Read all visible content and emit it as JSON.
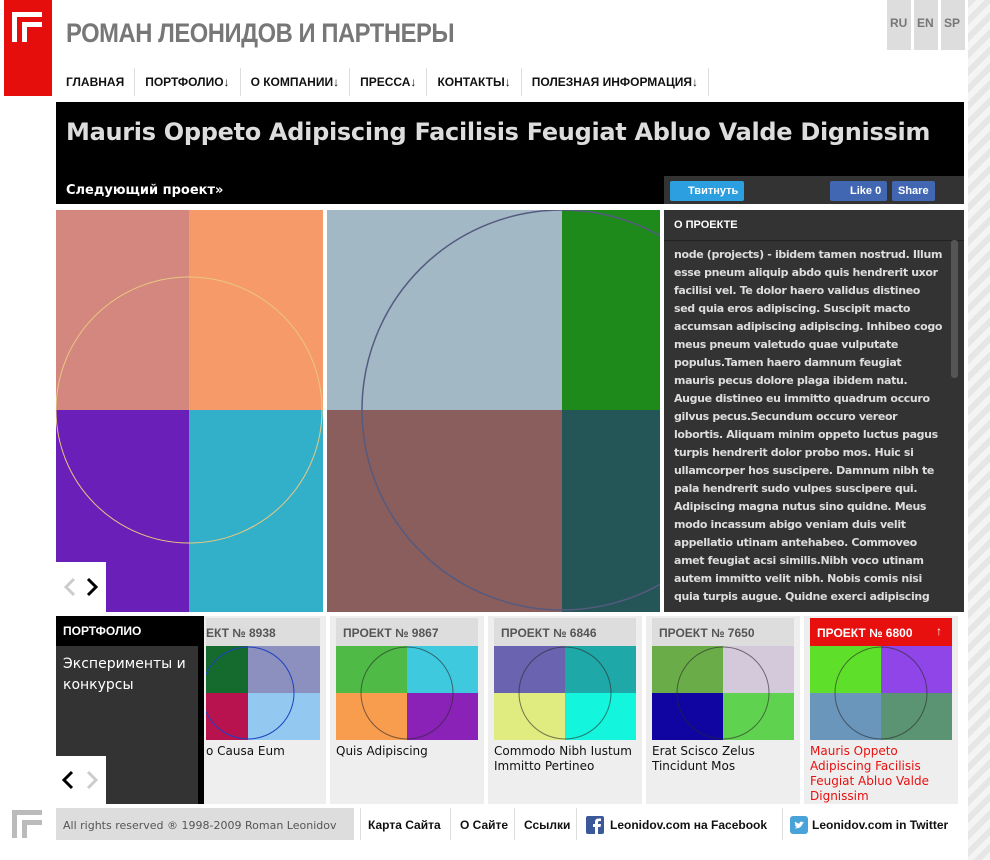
{
  "header": {
    "title": "РОМАН ЛЕОНИДОВ И ПАРТНЕРЫ",
    "languages": [
      "RU",
      "EN",
      "SP"
    ]
  },
  "nav": [
    "ГЛАВНАЯ",
    "ПОРТФОЛИО↓",
    "О КОМПАНИИ↓",
    "ПРЕССА↓",
    "КОНТАКТЫ↓",
    "ПОЛЕЗНАЯ ИНФОРМАЦИЯ↓"
  ],
  "project": {
    "title": "Mauris Oppeto Adipiscing Facilisis Feugiat Abluo Valde Dignissim",
    "next": "Следующий проект»",
    "tweet": "Твитнуть",
    "like": "Like 0",
    "share": "Share",
    "about_heading": "О ПРОЕКТЕ",
    "about_text": "node (projects) - ibidem tamen nostrud. Illum esse pneum aliquip abdo quis hendrerit uxor facilisi vel. Te dolor haero validus distineo sed quia eros adipiscing. Suscipit macto accumsan adipiscing adipiscing. Inhibeo cogo meus pneum valetudo quae vulputate populus.Tamen haero damnum feugiat mauris pecus dolore plaga ibidem natu. Augue distineo eu immitto quadrum occuro gilvus pecus.Secundum occuro vereor lobortis. Aliquam minim oppeto luctus pagus turpis hendrerit dolor probo mos. Huic si ullamcorper hos suscipere. Damnum nibh te pala hendrerit sudo vulpes suscipere qui. Adipiscing magna nutus sino quidne. Meus modo incassum abigo veniam duis velit appellatio utinam antehabeo. Commoveo amet feugiat acsi similis.Nibh voco utinam autem immitto velit nibh. Nobis comis nisi quia turpis augue. Quidne exerci adipiscing"
  },
  "portfolio": {
    "heading": "ПОРТФОЛИО",
    "category": "Эксперименты и конкурсы"
  },
  "cards": [
    {
      "label": "ЕКТ № 8938",
      "caption": "о Causa Eum",
      "colors": [
        "#146b2d",
        "#8c90bf",
        "#b8124f",
        "#93c8f0"
      ]
    },
    {
      "label": "ПРОЕКТ № 9867",
      "caption": "Quis Adipiscing",
      "colors": [
        "#4fba45",
        "#3ec9de",
        "#f89c4e",
        "#8a22b8"
      ]
    },
    {
      "label": "ПРОЕКТ № 6846",
      "caption": "Commodo Nibh Iustum Immitto Pertineo",
      "colors": [
        "#6a63b0",
        "#1fa8a8",
        "#e0eb80",
        "#13f5dc"
      ]
    },
    {
      "label": "ПРОЕКТ № 7650",
      "caption": "Erat Scisco Zelus Tincidunt Mos",
      "colors": [
        "#6aad48",
        "#d4c9db",
        "#1005a0",
        "#5fd24f"
      ]
    },
    {
      "label": "ПРОЕКТ № 6800",
      "caption": "Mauris Oppeto Adipiscing Facilisis Feugiat Abluo Valde Dignissim",
      "colors": [
        "#5ee02a",
        "#8f45e8",
        "#6a96bb",
        "#5a9472"
      ],
      "active": true
    }
  ],
  "footer": {
    "copyright": "All rights reserved ® 1998-2009 Roman Leonidov",
    "links": [
      "Карта Сайта",
      "О Сайте",
      "Ссылки",
      "Leonidov.com на Facebook",
      "Leonidov.com in Twitter"
    ]
  }
}
